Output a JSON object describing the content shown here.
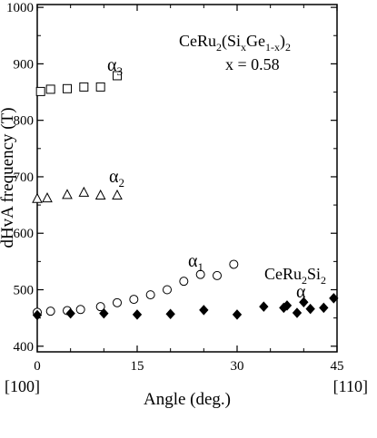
{
  "chart_data": {
    "type": "scatter",
    "title": "",
    "xlabel": "Angle (deg.)",
    "ylabel": "dHvA frequency (T)",
    "xlim": [
      0,
      45
    ],
    "ylim": [
      390,
      1005
    ],
    "x_ticks": [
      0,
      15,
      30,
      45
    ],
    "y_ticks": [
      400,
      500,
      600,
      700,
      800,
      900,
      1000
    ],
    "x_ticks_text": [
      "0",
      "15",
      "30",
      "45"
    ],
    "y_ticks_text": [
      "400",
      "500",
      "600",
      "700",
      "800",
      "900",
      "1000"
    ],
    "direction_labels": {
      "start": "[100]",
      "end": "[110]"
    },
    "annotations": {
      "compound": {
        "base": "CeRu",
        "sub1": "2",
        "mid1": "(Si",
        "sub2": "x",
        "mid2": "Ge",
        "sub3": "1-x",
        "mid3": ")",
        "sub4": "2"
      },
      "composition": "x = 0.58",
      "ref_compound": {
        "base": "CeRu",
        "sub1": "2",
        "mid": "Si",
        "sub2": "2"
      }
    },
    "series": [
      {
        "label": {
          "base": "α",
          "sub": "3"
        },
        "marker": "open-square",
        "x": [
          0.5,
          2,
          4.5,
          7,
          9.5,
          12
        ],
        "y": [
          851,
          855,
          856,
          859,
          859,
          879
        ]
      },
      {
        "label": {
          "base": "α",
          "sub": "2"
        },
        "marker": "open-triangle",
        "x": [
          0,
          1.5,
          4.5,
          7,
          9.5,
          12
        ],
        "y": [
          661,
          662,
          668,
          672,
          667,
          667
        ]
      },
      {
        "label": {
          "base": "α",
          "sub": "1"
        },
        "marker": "open-circle",
        "x": [
          0,
          2,
          4.5,
          6.5,
          9.5,
          12,
          14.5,
          17,
          19.5,
          22,
          24.5,
          27,
          29.5
        ],
        "y": [
          460,
          462,
          463,
          465,
          470,
          477,
          483,
          491,
          500,
          515,
          527,
          525,
          545
        ]
      },
      {
        "label": {
          "base": "α",
          "sub": ""
        },
        "marker": "filled-diamond",
        "x": [
          0,
          5,
          10,
          15,
          20,
          25,
          30,
          34,
          37,
          37.5,
          39,
          40,
          41,
          43,
          44.5
        ],
        "y": [
          455,
          458,
          458,
          456,
          457,
          464,
          456,
          470,
          468,
          472,
          459,
          478,
          466,
          468,
          485
        ]
      }
    ]
  }
}
